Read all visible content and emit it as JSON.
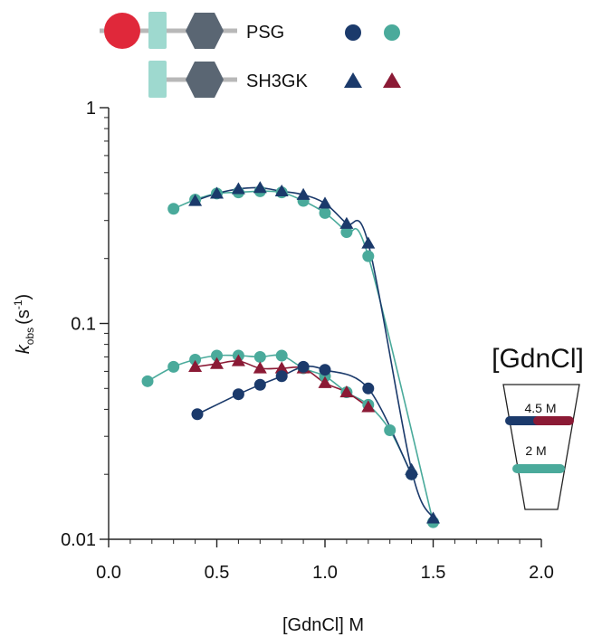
{
  "chart_data": {
    "type": "scatter",
    "xlabel": "[GdnCl] M",
    "ylabel_main": "k",
    "ylabel_sub": "obs",
    "ylabel_unit_open": "(s",
    "ylabel_unit_sup": "-1",
    "ylabel_unit_close": ")",
    "xlim": [
      0,
      2.0
    ],
    "ylim": [
      0.01,
      1
    ],
    "yscale": "log",
    "x_ticks": [
      0.0,
      0.5,
      1.0,
      1.5,
      2.0
    ],
    "x_tick_labels": [
      "0.0",
      "0.5",
      "1.0",
      "1.5",
      "2.0"
    ],
    "y_ticks": [
      0.01,
      0.1,
      1
    ],
    "y_tick_labels": [
      "0.01",
      "0.1",
      "1"
    ],
    "legend": {
      "placement": "top",
      "rows": [
        {
          "label": "PSG",
          "markers": [
            "circle",
            "circle"
          ],
          "colors": [
            "#1b3a6b",
            "#4aaa9b"
          ]
        },
        {
          "label": "SH3GK",
          "markers": [
            "triangle",
            "triangle"
          ],
          "colors": [
            "#1b3a6b",
            "#8b1a35"
          ]
        }
      ]
    },
    "colors": {
      "navy": "#1b3a6b",
      "teal": "#4aaa9b",
      "maroon": "#8b1a35",
      "red": "#e0283a",
      "lightteal": "#9ed9cf",
      "slate": "#5a6673",
      "gray": "#b8b8b8"
    },
    "series": [
      {
        "name": "PSG",
        "marker": "circle",
        "color": "#4aaa9b",
        "x": [
          0.3,
          0.4,
          0.5,
          0.6,
          0.7,
          0.8,
          0.9,
          1.0,
          1.1,
          1.2,
          1.5
        ],
        "y": [
          0.34,
          0.375,
          0.4,
          0.405,
          0.41,
          0.405,
          0.37,
          0.325,
          0.265,
          0.205,
          0.012
        ]
      },
      {
        "marker": "triangle",
        "color": "#1b3a6b",
        "x": [
          0.4,
          0.5,
          0.6,
          0.7,
          0.8,
          0.9,
          1.0,
          1.1,
          1.2,
          1.4,
          1.5
        ],
        "y": [
          0.37,
          0.4,
          0.42,
          0.425,
          0.41,
          0.395,
          0.36,
          0.29,
          0.235,
          0.021,
          0.0125
        ]
      },
      {
        "marker": "circle",
        "color": "#4aaa9b",
        "x": [
          0.18,
          0.3,
          0.4,
          0.5,
          0.6,
          0.7,
          0.8,
          0.9,
          1.0,
          1.1,
          1.2,
          1.3,
          1.4
        ],
        "y": [
          0.054,
          0.063,
          0.068,
          0.071,
          0.071,
          0.07,
          0.071,
          0.062,
          0.057,
          0.048,
          0.042,
          0.032,
          0.02
        ]
      },
      {
        "marker": "triangle",
        "color": "#8b1a35",
        "x": [
          0.4,
          0.5,
          0.6,
          0.7,
          0.8,
          0.9,
          1.0,
          1.1,
          1.2
        ],
        "y": [
          0.063,
          0.065,
          0.067,
          0.062,
          0.062,
          0.062,
          0.053,
          0.048,
          0.041
        ]
      },
      {
        "marker": "circle",
        "color": "#1b3a6b",
        "x": [
          0.41,
          0.6,
          0.7,
          0.8,
          0.9,
          1.0,
          1.2,
          1.4
        ],
        "y": [
          0.038,
          0.047,
          0.052,
          0.057,
          0.063,
          0.061,
          0.05,
          0.02
        ]
      }
    ],
    "inset": {
      "title": "[GdnCl]",
      "labels": [
        "4.5 M",
        "2 M"
      ]
    }
  }
}
